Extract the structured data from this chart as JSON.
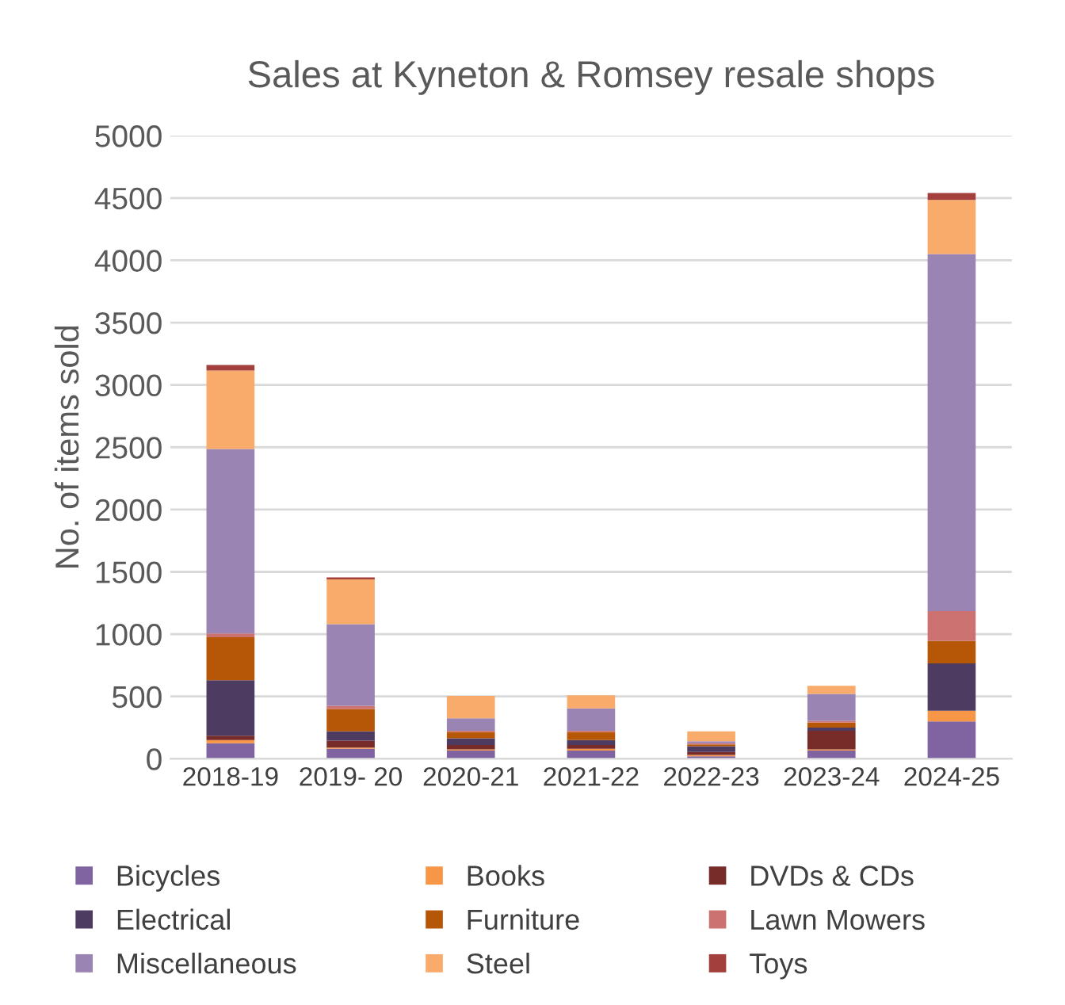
{
  "chart_data": {
    "type": "bar",
    "stacked": true,
    "title": "Sales at Kyneton & Romsey resale shops",
    "ylabel": "No. of items sold",
    "categories": [
      "2018-19",
      "2019- 20",
      "2020-21",
      "2021-22",
      "2022-23",
      "2023-24",
      "2024-25"
    ],
    "series": [
      {
        "name": "Bicycles",
        "color": "#8064a2",
        "values": [
          125,
          80,
          65,
          65,
          20,
          65,
          300
        ]
      },
      {
        "name": "Books",
        "color": "#f79646",
        "values": [
          25,
          10,
          10,
          15,
          10,
          10,
          85
        ]
      },
      {
        "name": "DVDs & CDs",
        "color": "#772c2a",
        "values": [
          35,
          55,
          35,
          30,
          25,
          150,
          null
        ]
      },
      {
        "name": "Electrical",
        "color": "#4d3b62",
        "values": [
          445,
          75,
          55,
          40,
          45,
          25,
          380
        ]
      },
      {
        "name": "Furniture",
        "color": "#b65708",
        "values": [
          345,
          180,
          50,
          65,
          15,
          40,
          180
        ]
      },
      {
        "name": "Lawn Mowers",
        "color": "#cc7371",
        "values": [
          30,
          25,
          10,
          10,
          10,
          15,
          240
        ]
      },
      {
        "name": "Miscellaneous",
        "color": "#9a84b4",
        "values": [
          1480,
          655,
          100,
          180,
          15,
          215,
          2865
        ]
      },
      {
        "name": "Steel",
        "color": "#f9ab6b",
        "values": [
          630,
          360,
          180,
          105,
          80,
          65,
          435
        ]
      },
      {
        "name": "Toys",
        "color": "#a33f3c",
        "values": [
          45,
          15,
          null,
          null,
          null,
          null,
          55
        ]
      }
    ],
    "ylim": [
      0,
      5000
    ],
    "yticks": [
      0,
      500,
      1000,
      1500,
      2000,
      2500,
      3000,
      3500,
      4000,
      4500,
      5000
    ],
    "grid": "y",
    "legend": "bottom"
  }
}
